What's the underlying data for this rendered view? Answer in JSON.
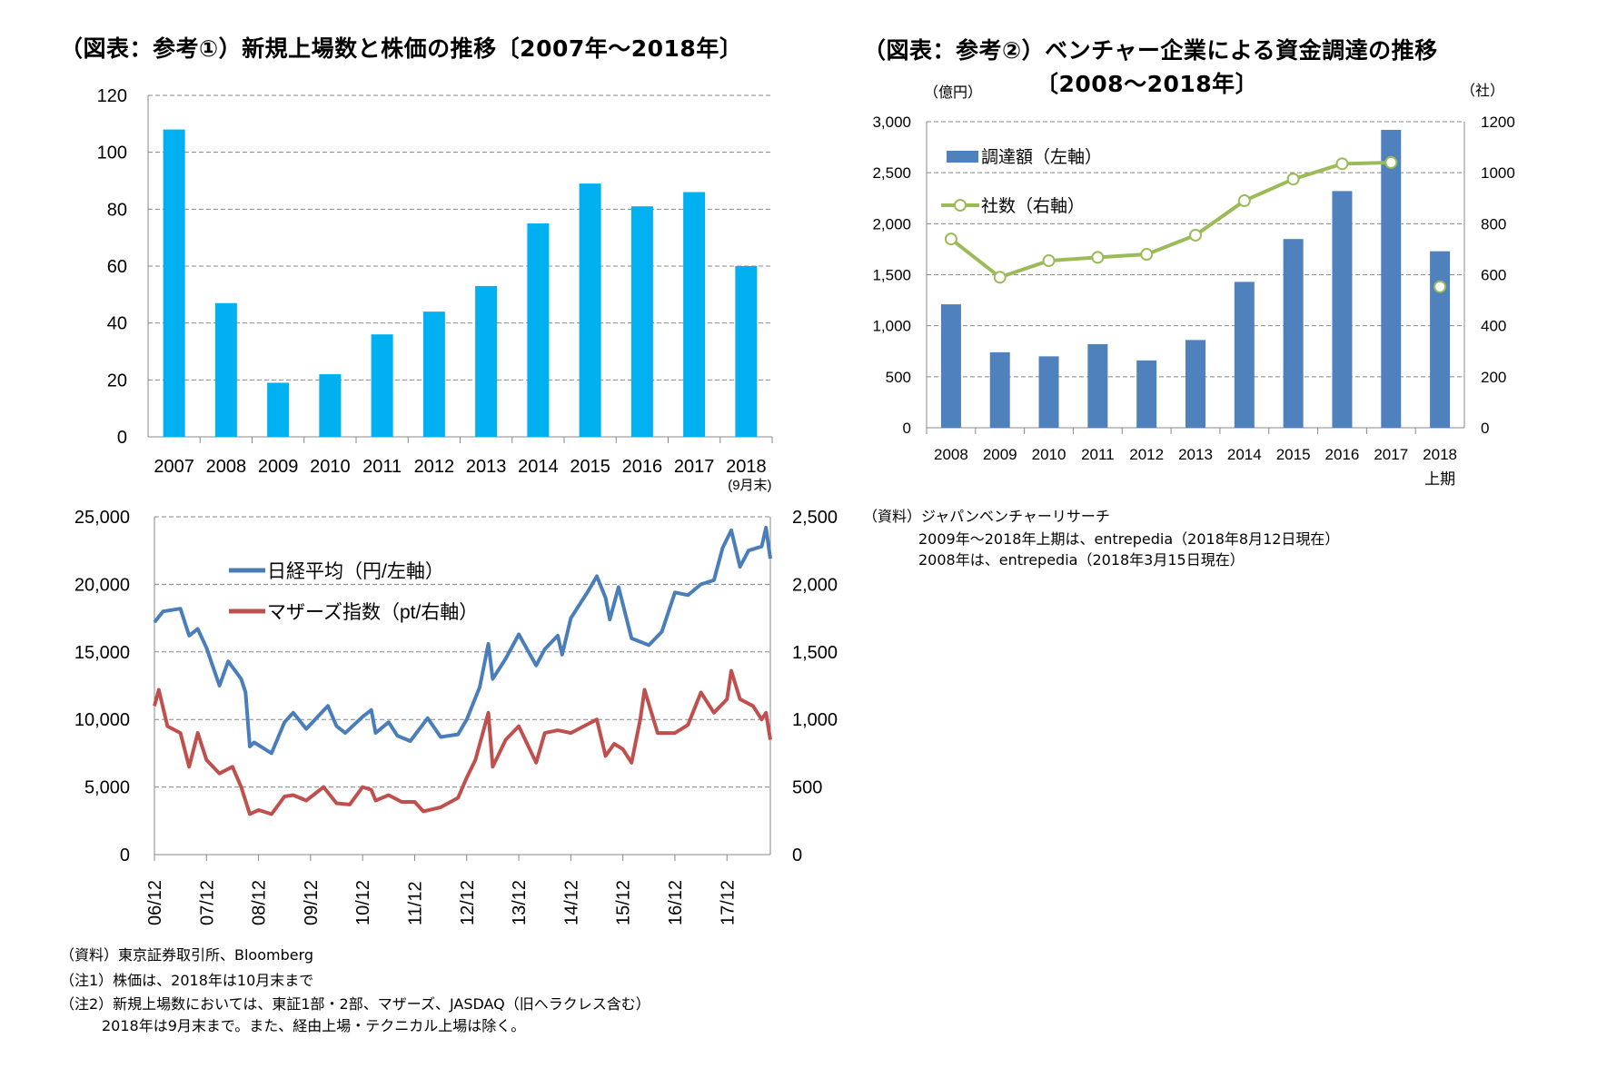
{
  "left_panel": {
    "title": "（図表：参考①）新規上場数と株価の推移〔2007年～2018年〕",
    "notes": [
      "（資料）東京証券取引所、Bloomberg",
      "（注1）株価は、2018年は10月末まで",
      "（注2）新規上場数においては、東証1部・2部、マザーズ、JASDAQ（旧ヘラクレス含む）",
      "2018年は9月末まで。また、経由上場・テクニカル上場は除く。"
    ]
  },
  "right_panel": {
    "title_line1": "（図表：参考②）ベンチャー企業による資金調達の推移",
    "title_line2": "〔2008～2018年〕",
    "notes": [
      "（資料）ジャパンベンチャーリサーチ",
      "2009年～2018年上期は、entrepedia（2018年8月12日現在）",
      "2008年は、entrepedia（2018年3月15日現在）"
    ]
  },
  "chart_data": [
    {
      "type": "bar",
      "categories": [
        "2007",
        "2008",
        "2009",
        "2010",
        "2011",
        "2012",
        "2013",
        "2014",
        "2015",
        "2016",
        "2017",
        "2018"
      ],
      "category_sublabel": "(9月末)",
      "values": [
        108,
        47,
        19,
        22,
        36,
        44,
        53,
        75,
        89,
        81,
        86,
        60
      ],
      "ylim": [
        0,
        120
      ],
      "yticks": [
        "0",
        "20",
        "40",
        "60",
        "80",
        "100",
        "120"
      ],
      "grid": true,
      "color": "#00B0F0"
    },
    {
      "type": "line",
      "xticks": [
        "06/12",
        "07/12",
        "08/12",
        "09/12",
        "10/12",
        "11/12",
        "12/12",
        "13/12",
        "14/12",
        "15/12",
        "16/12",
        "17/12"
      ],
      "ylim_left": [
        0,
        25000
      ],
      "yticks_left": [
        "0",
        "5,000",
        "10,000",
        "15,000",
        "20,000",
        "25,000"
      ],
      "ylim_right": [
        0,
        2500
      ],
      "yticks_right": [
        "0",
        "500",
        "1,000",
        "1,500",
        "2,000",
        "2,500"
      ],
      "grid": true,
      "legend": "top-left",
      "series": [
        {
          "name": "日経平均（円/左軸）",
          "axis": "left",
          "color": "#4A7EBB",
          "x": [
            "06/12",
            "07/02",
            "07/06",
            "07/08",
            "07/10",
            "07/12",
            "08/03",
            "08/05",
            "08/08",
            "08/09",
            "08/10",
            "08/11",
            "09/03",
            "09/06",
            "09/08",
            "09/11",
            "10/04",
            "10/06",
            "10/08",
            "10/12",
            "11/02",
            "11/03",
            "11/06",
            "11/08",
            "11/11",
            "12/03",
            "12/06",
            "12/10",
            "12/12",
            "13/03",
            "13/05",
            "13/06",
            "13/09",
            "13/12",
            "14/04",
            "14/06",
            "14/09",
            "14/10",
            "14/12",
            "15/04",
            "15/06",
            "15/08",
            "15/09",
            "15/11",
            "16/02",
            "16/06",
            "16/09",
            "16/12",
            "17/03",
            "17/06",
            "17/09",
            "17/11",
            "18/01",
            "18/03",
            "18/05",
            "18/08",
            "18/09",
            "18/10"
          ],
          "y": [
            17200,
            18000,
            18200,
            16200,
            16700,
            15300,
            12500,
            14300,
            13000,
            12000,
            8000,
            8300,
            7500,
            9800,
            10500,
            9300,
            11000,
            9500,
            9000,
            10200,
            10700,
            9000,
            9800,
            8800,
            8400,
            10100,
            8700,
            8900,
            10000,
            12400,
            15600,
            13000,
            14500,
            16300,
            14000,
            15200,
            16200,
            14800,
            17500,
            19500,
            20600,
            19000,
            17400,
            19800,
            16000,
            15500,
            16500,
            19400,
            19200,
            20000,
            20300,
            22700,
            24000,
            21300,
            22500,
            22800,
            24200,
            21900
          ]
        },
        {
          "name": "マザーズ指数（pt/右軸）",
          "axis": "right",
          "color": "#C0504D",
          "x": [
            "06/12",
            "07/01",
            "07/03",
            "07/06",
            "07/08",
            "07/10",
            "07/12",
            "08/03",
            "08/06",
            "08/08",
            "08/10",
            "08/12",
            "09/03",
            "09/06",
            "09/08",
            "09/11",
            "10/03",
            "10/06",
            "10/09",
            "10/12",
            "11/02",
            "11/03",
            "11/06",
            "11/09",
            "11/12",
            "12/02",
            "12/06",
            "12/10",
            "12/12",
            "13/02",
            "13/05",
            "13/06",
            "13/09",
            "13/12",
            "14/04",
            "14/06",
            "14/09",
            "14/12",
            "15/03",
            "15/06",
            "15/08",
            "15/10",
            "15/12",
            "16/02",
            "16/04",
            "16/05",
            "16/08",
            "16/12",
            "17/03",
            "17/06",
            "17/09",
            "17/12",
            "18/01",
            "18/03",
            "18/06",
            "18/08",
            "18/09",
            "18/10"
          ],
          "y": [
            1100,
            1220,
            950,
            900,
            650,
            900,
            700,
            600,
            650,
            500,
            300,
            330,
            300,
            430,
            440,
            400,
            500,
            380,
            370,
            500,
            480,
            400,
            440,
            390,
            390,
            320,
            350,
            420,
            570,
            700,
            1050,
            650,
            850,
            950,
            680,
            900,
            920,
            900,
            950,
            1000,
            730,
            820,
            780,
            680,
            1000,
            1220,
            900,
            900,
            960,
            1200,
            1050,
            1150,
            1360,
            1150,
            1100,
            1000,
            1050,
            850
          ]
        }
      ]
    },
    {
      "type": "bar+line",
      "categories": [
        "2008",
        "2009",
        "2010",
        "2011",
        "2012",
        "2013",
        "2014",
        "2015",
        "2016",
        "2017",
        "2018"
      ],
      "last_category_sublabel": "上期",
      "ylabel_left": "（億円）",
      "ylabel_right": "（社）",
      "ylim_left": [
        0,
        3000
      ],
      "yticks_left": [
        "0",
        "500",
        "1,000",
        "1,500",
        "2,000",
        "2,500",
        "3,000"
      ],
      "ylim_right": [
        0,
        1200
      ],
      "yticks_right": [
        "0",
        "200",
        "400",
        "600",
        "800",
        "1000",
        "1200"
      ],
      "grid": true,
      "legend": "top-left",
      "series": [
        {
          "name": "調達額（左軸）",
          "type": "bar",
          "axis": "left",
          "color": "#4F81BD",
          "values": [
            1210,
            740,
            700,
            820,
            660,
            860,
            1430,
            1850,
            2320,
            2920,
            1730
          ]
        },
        {
          "name": "社数（右軸）",
          "type": "line",
          "axis": "right",
          "color": "#9BBB59",
          "values": [
            740,
            590,
            655,
            668,
            680,
            755,
            890,
            975,
            1035,
            1040,
            553
          ],
          "last_point_unconnected": true
        }
      ]
    }
  ]
}
